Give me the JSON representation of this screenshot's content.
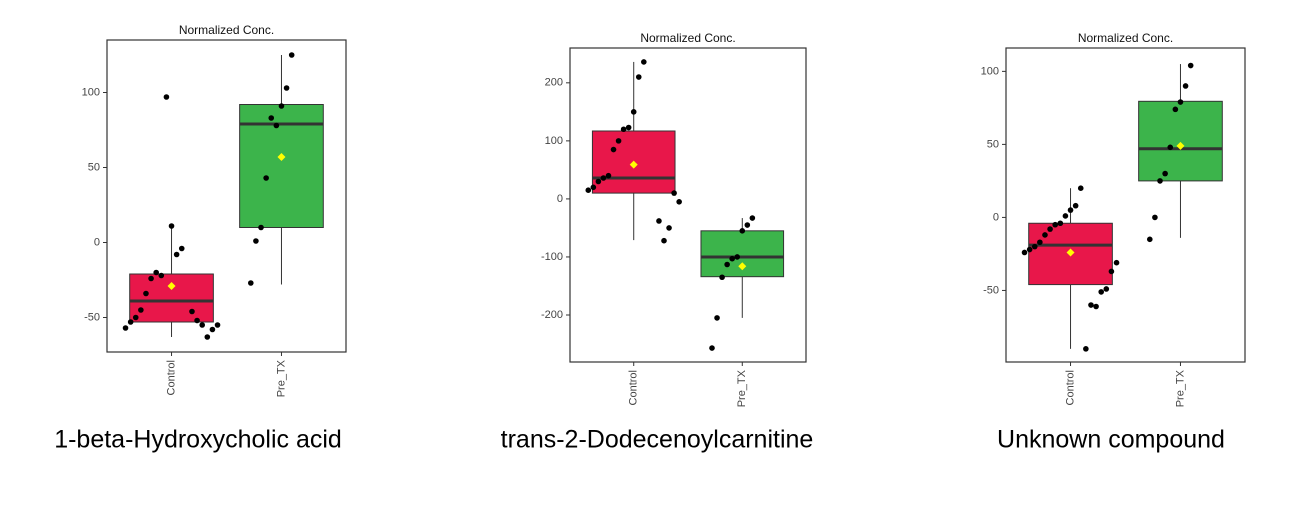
{
  "chart_data": [
    {
      "type": "box",
      "title": "Normalized Conc.",
      "caption": "1-beta-Hydroxycholic acid",
      "categories": [
        "Control",
        "Pre_TX"
      ],
      "boxes": [
        {
          "min": -63,
          "q1": -53,
          "median": -39,
          "q3": -21,
          "max": 10,
          "mean": -29,
          "color": "#e8174a"
        },
        {
          "min": -28,
          "q1": 10,
          "median": 79,
          "q3": 92,
          "max": 125,
          "mean": 57,
          "color": "#3cb44b"
        }
      ],
      "points": [
        [
          -4,
          -8,
          11,
          97,
          -22,
          -20,
          -24,
          -34,
          -45,
          -50,
          -53,
          -57,
          -55,
          -58,
          -63,
          -55,
          -52,
          -46
        ],
        [
          125,
          103,
          91,
          78,
          83,
          43,
          10,
          1,
          -27
        ]
      ],
      "ylim": [
        -73,
        135
      ],
      "yticks": [
        -50,
        0,
        50,
        100
      ]
    },
    {
      "type": "box",
      "title": "Normalized Conc.",
      "caption": "trans-2-Dodecenoylcarnitine",
      "categories": [
        "Control",
        "Pre_TX"
      ],
      "boxes": [
        {
          "min": -71,
          "q1": 10,
          "median": 36,
          "q3": 117,
          "max": 236,
          "mean": 59,
          "color": "#e8174a"
        },
        {
          "min": -205,
          "q1": -134,
          "median": -100,
          "q3": -55,
          "max": -33,
          "mean": -116,
          "color": "#3cb44b"
        }
      ],
      "points": [
        [
          236,
          210,
          150,
          123,
          120,
          100,
          85,
          40,
          36,
          30,
          20,
          15,
          -5,
          10,
          -50,
          -72,
          -38
        ],
        [
          -33,
          -45,
          -55,
          -100,
          -103,
          -113,
          -135,
          -205,
          -257
        ]
      ],
      "ylim": [
        -281,
        260
      ],
      "yticks": [
        -200,
        -100,
        0,
        100,
        200
      ]
    },
    {
      "type": "box",
      "title": "Normalized Conc.",
      "caption": "Unknown compound",
      "categories": [
        "Control",
        "Pre_TX"
      ],
      "boxes": [
        {
          "min": -90,
          "q1": -46,
          "median": -19,
          "q3": -4,
          "max": 20,
          "mean": -24,
          "color": "#e8174a"
        },
        {
          "min": -14,
          "q1": 25,
          "median": 47,
          "q3": 79.5,
          "max": 105,
          "mean": 49,
          "color": "#3cb44b"
        }
      ],
      "points": [
        [
          20,
          8,
          5,
          1,
          -4,
          -5,
          -8,
          -12,
          -17,
          -20,
          -22,
          -24,
          -31,
          -37,
          -49,
          -51,
          -61,
          -60,
          -90
        ],
        [
          104,
          90,
          79,
          74,
          48,
          30,
          25,
          0,
          -15
        ]
      ],
      "ylim": [
        -99,
        116
      ],
      "yticks": [
        -50,
        0,
        50,
        100
      ]
    }
  ]
}
